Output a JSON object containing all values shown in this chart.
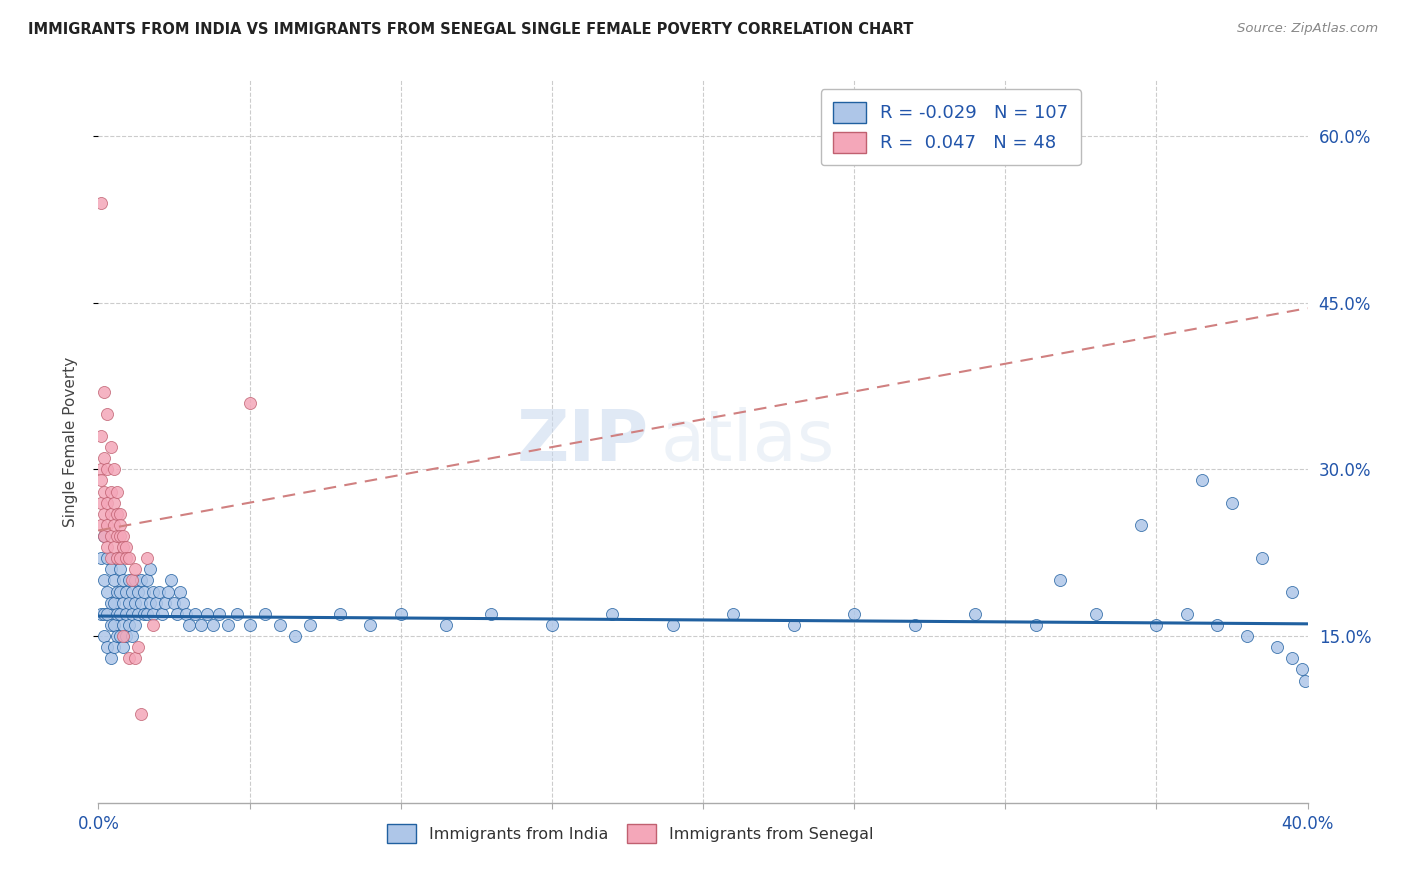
{
  "title": "IMMIGRANTS FROM INDIA VS IMMIGRANTS FROM SENEGAL SINGLE FEMALE POVERTY CORRELATION CHART",
  "source": "Source: ZipAtlas.com",
  "ylabel": "Single Female Poverty",
  "yticks": [
    "60.0%",
    "45.0%",
    "30.0%",
    "15.0%"
  ],
  "ytick_vals": [
    0.6,
    0.45,
    0.3,
    0.15
  ],
  "xlim": [
    0.0,
    0.4
  ],
  "ylim": [
    0.0,
    0.65
  ],
  "india_R": -0.029,
  "india_N": 107,
  "senegal_R": 0.047,
  "senegal_N": 48,
  "india_color": "#aec6e8",
  "senegal_color": "#f4a7b9",
  "india_line_color": "#2060a0",
  "senegal_line_color": "#d08080",
  "background_color": "#ffffff",
  "india_x": [
    0.001,
    0.001,
    0.002,
    0.002,
    0.002,
    0.002,
    0.003,
    0.003,
    0.003,
    0.003,
    0.004,
    0.004,
    0.004,
    0.004,
    0.005,
    0.005,
    0.005,
    0.005,
    0.006,
    0.006,
    0.006,
    0.006,
    0.007,
    0.007,
    0.007,
    0.007,
    0.008,
    0.008,
    0.008,
    0.008,
    0.009,
    0.009,
    0.009,
    0.01,
    0.01,
    0.01,
    0.011,
    0.011,
    0.011,
    0.012,
    0.012,
    0.012,
    0.013,
    0.013,
    0.014,
    0.014,
    0.015,
    0.015,
    0.016,
    0.016,
    0.017,
    0.017,
    0.018,
    0.018,
    0.019,
    0.02,
    0.021,
    0.022,
    0.023,
    0.024,
    0.025,
    0.026,
    0.027,
    0.028,
    0.029,
    0.03,
    0.032,
    0.034,
    0.036,
    0.038,
    0.04,
    0.043,
    0.046,
    0.05,
    0.055,
    0.06,
    0.065,
    0.07,
    0.08,
    0.09,
    0.1,
    0.115,
    0.13,
    0.15,
    0.17,
    0.19,
    0.21,
    0.23,
    0.25,
    0.27,
    0.29,
    0.31,
    0.33,
    0.35,
    0.36,
    0.37,
    0.38,
    0.39,
    0.395,
    0.398,
    0.399,
    0.395,
    0.385,
    0.375,
    0.365,
    0.345,
    0.318
  ],
  "india_y": [
    0.22,
    0.17,
    0.24,
    0.2,
    0.17,
    0.15,
    0.22,
    0.19,
    0.17,
    0.14,
    0.21,
    0.18,
    0.16,
    0.13,
    0.2,
    0.18,
    0.16,
    0.14,
    0.22,
    0.19,
    0.17,
    0.15,
    0.21,
    0.19,
    0.17,
    0.15,
    0.2,
    0.18,
    0.16,
    0.14,
    0.19,
    0.17,
    0.15,
    0.2,
    0.18,
    0.16,
    0.19,
    0.17,
    0.15,
    0.2,
    0.18,
    0.16,
    0.19,
    0.17,
    0.2,
    0.18,
    0.19,
    0.17,
    0.2,
    0.17,
    0.21,
    0.18,
    0.19,
    0.17,
    0.18,
    0.19,
    0.17,
    0.18,
    0.19,
    0.2,
    0.18,
    0.17,
    0.19,
    0.18,
    0.17,
    0.16,
    0.17,
    0.16,
    0.17,
    0.16,
    0.17,
    0.16,
    0.17,
    0.16,
    0.17,
    0.16,
    0.15,
    0.16,
    0.17,
    0.16,
    0.17,
    0.16,
    0.17,
    0.16,
    0.17,
    0.16,
    0.17,
    0.16,
    0.17,
    0.16,
    0.17,
    0.16,
    0.17,
    0.16,
    0.17,
    0.16,
    0.15,
    0.14,
    0.13,
    0.12,
    0.11,
    0.19,
    0.22,
    0.27,
    0.29,
    0.25,
    0.2
  ],
  "senegal_x": [
    0.001,
    0.001,
    0.001,
    0.001,
    0.001,
    0.001,
    0.002,
    0.002,
    0.002,
    0.002,
    0.002,
    0.003,
    0.003,
    0.003,
    0.003,
    0.003,
    0.004,
    0.004,
    0.004,
    0.004,
    0.004,
    0.005,
    0.005,
    0.005,
    0.005,
    0.006,
    0.006,
    0.006,
    0.006,
    0.007,
    0.007,
    0.007,
    0.007,
    0.008,
    0.008,
    0.008,
    0.009,
    0.009,
    0.01,
    0.01,
    0.011,
    0.012,
    0.012,
    0.013,
    0.014,
    0.016,
    0.018,
    0.05
  ],
  "senegal_y": [
    0.54,
    0.33,
    0.3,
    0.29,
    0.27,
    0.25,
    0.37,
    0.31,
    0.28,
    0.26,
    0.24,
    0.35,
    0.3,
    0.27,
    0.25,
    0.23,
    0.32,
    0.28,
    0.26,
    0.24,
    0.22,
    0.3,
    0.27,
    0.25,
    0.23,
    0.28,
    0.26,
    0.24,
    0.22,
    0.26,
    0.25,
    0.24,
    0.22,
    0.24,
    0.23,
    0.15,
    0.23,
    0.22,
    0.22,
    0.13,
    0.2,
    0.21,
    0.13,
    0.14,
    0.08,
    0.22,
    0.16,
    0.36
  ],
  "watermark_zip": "ZIP",
  "watermark_atlas": "atlas",
  "india_trend_y0": 0.168,
  "india_trend_y1": 0.161,
  "senegal_trend_y0": 0.245,
  "senegal_trend_y1": 0.445
}
